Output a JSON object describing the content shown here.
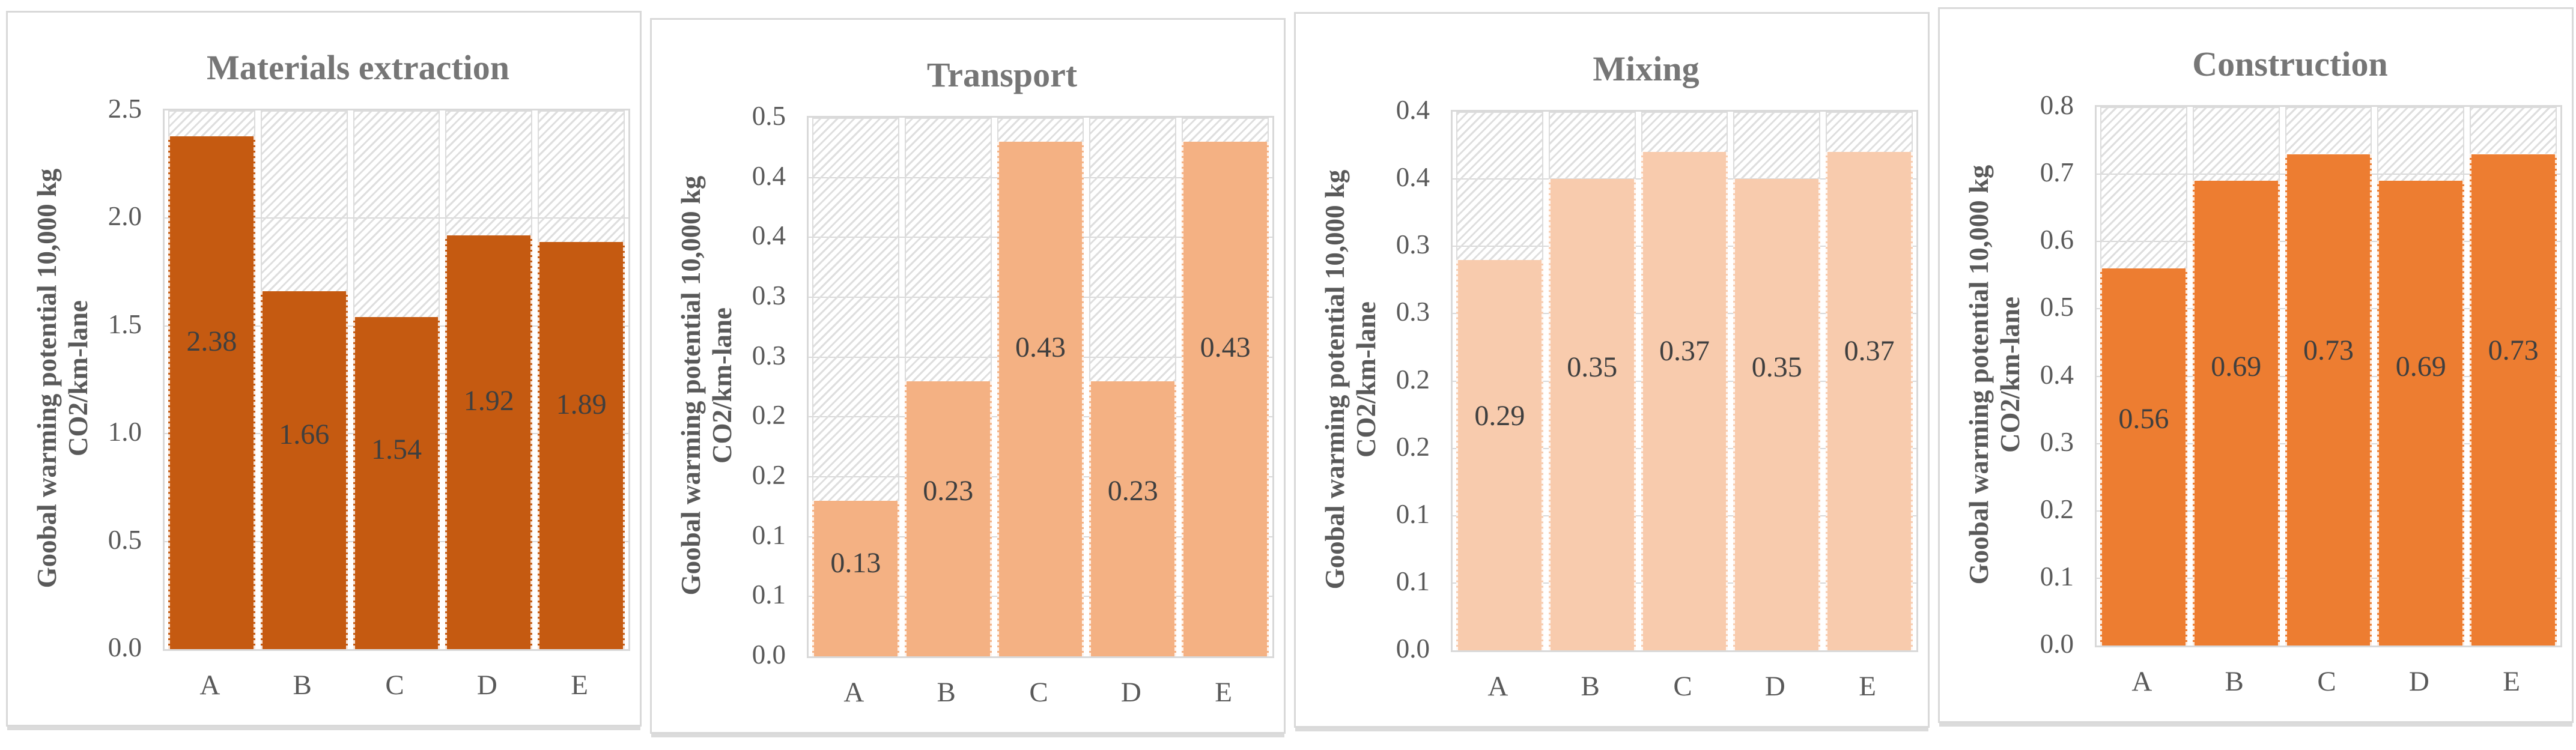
{
  "figure": {
    "description_colors": {
      "panel_border": "#D9D9D9",
      "gridline": "#D9D9D9",
      "title_text": "#767676",
      "axis_text": "#595959",
      "data_label_text": "#3F3F3F",
      "empty_remainder_fill": "diagonal-hatch-light-gray"
    }
  },
  "chart_data": [
    {
      "type": "bar",
      "title": "Materials extraction",
      "categories": [
        "A",
        "B",
        "C",
        "D",
        "E"
      ],
      "values": [
        2.38,
        1.66,
        1.54,
        1.92,
        1.89
      ],
      "ylabel": [
        "Goobal warming potential 10,000 kg",
        "CO2/km-lane"
      ],
      "ylim": [
        0,
        2.5
      ],
      "ymax": 2.5,
      "yticks": [
        "2.5",
        "2.0",
        "1.5",
        "1.0",
        "0.5",
        "0.0"
      ],
      "grid": "on",
      "legend": "none",
      "bar_color": "#C55A11"
    },
    {
      "type": "bar",
      "title": "Transport",
      "categories": [
        "A",
        "B",
        "C",
        "D",
        "E"
      ],
      "values": [
        0.13,
        0.23,
        0.43,
        0.23,
        0.43
      ],
      "ylabel": [
        "Goobal warming potential 10,000 kg",
        "CO2/km-lane"
      ],
      "ylim": [
        0,
        0.45
      ],
      "ymax": 0.45,
      "yticks": [
        "0.5",
        "0.4",
        "0.4",
        "0.3",
        "0.3",
        "0.2",
        "0.2",
        "0.1",
        "0.1",
        "0.0"
      ],
      "grid": "on",
      "legend": "none",
      "bar_color": "#F4B183"
    },
    {
      "type": "bar",
      "title": "Mixing",
      "categories": [
        "A",
        "B",
        "C",
        "D",
        "E"
      ],
      "values": [
        0.29,
        0.35,
        0.37,
        0.35,
        0.37
      ],
      "ylabel": [
        "Goobal warming potential 10,000 kg",
        "CO2/km-lane"
      ],
      "ylim": [
        0,
        0.4
      ],
      "ymax": 0.4,
      "yticks": [
        "0.4",
        "0.4",
        "0.3",
        "0.3",
        "0.2",
        "0.2",
        "0.1",
        "0.1",
        "0.0"
      ],
      "grid": "on",
      "legend": "none",
      "bar_color": "#F8CBAD"
    },
    {
      "type": "bar",
      "title": "Construction",
      "categories": [
        "A",
        "B",
        "C",
        "D",
        "E"
      ],
      "values": [
        0.56,
        0.69,
        0.73,
        0.69,
        0.73
      ],
      "ylabel": [
        "Goobal warming potential 10,000 kg",
        "CO2/km-lane"
      ],
      "ylim": [
        0,
        0.8
      ],
      "ymax": 0.8,
      "yticks": [
        "0.8",
        "0.7",
        "0.6",
        "0.5",
        "0.4",
        "0.3",
        "0.2",
        "0.1",
        "0.0"
      ],
      "grid": "on",
      "legend": "none",
      "bar_color": "#ED7D31"
    }
  ]
}
